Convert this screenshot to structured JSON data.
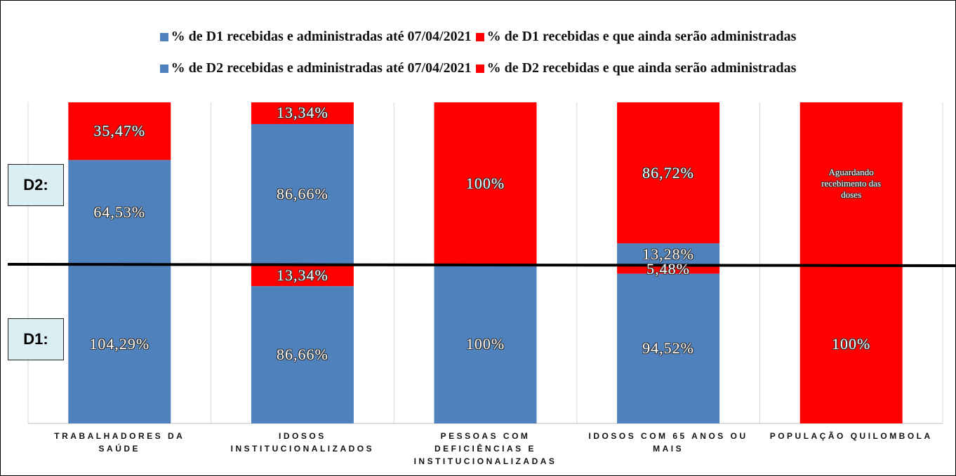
{
  "chart_data": [
    {
      "type": "bar",
      "stacked": true,
      "panel_label": "D1:",
      "ylim": [
        0,
        100
      ],
      "categories": [
        "TRABALHADORES DA SAÚDE",
        "IDOSOS INSTITUCIONALIZADOS",
        "PESSOAS COM DEFICIÊNCIAS E INSTITUCIONALIZADAS",
        "IDOSOS COM 65 ANOS OU MAIS",
        "POPULAÇÃO QUILOMBOLA"
      ],
      "series": [
        {
          "name": "% de D1 recebidas e administradas até 07/04/2021",
          "color": "#4f81bd",
          "values": [
            104.29,
            86.66,
            100,
            94.52,
            null
          ],
          "value_labels": [
            "104,29%",
            "86,66%",
            "100%",
            "94,52%",
            null
          ]
        },
        {
          "name": "% de D1 recebidas e que ainda serão administradas",
          "color": "#ff0000",
          "values": [
            null,
            13.34,
            null,
            5.48,
            100
          ],
          "value_labels": [
            null,
            "13,34%",
            null,
            "5,48%",
            "100%"
          ]
        }
      ]
    },
    {
      "type": "bar",
      "stacked": true,
      "panel_label": "D2:",
      "ylim": [
        0,
        100
      ],
      "series": [
        {
          "name": "% de D2 recebidas e administradas até 07/04/2021",
          "color": "#4f81bd",
          "values": [
            64.53,
            86.66,
            null,
            13.28,
            null
          ],
          "value_labels": [
            "64,53%",
            "86,66%",
            null,
            "13,28%",
            null
          ]
        },
        {
          "name": "% de D2 recebidas e que ainda serão administradas",
          "color": "#ff0000",
          "values": [
            35.47,
            13.34,
            100,
            86.72,
            100
          ],
          "value_labels": [
            "35,47%",
            "13,34%",
            "100%",
            "86,72%",
            "Aguardando recebimento das doses"
          ]
        }
      ]
    }
  ]
}
